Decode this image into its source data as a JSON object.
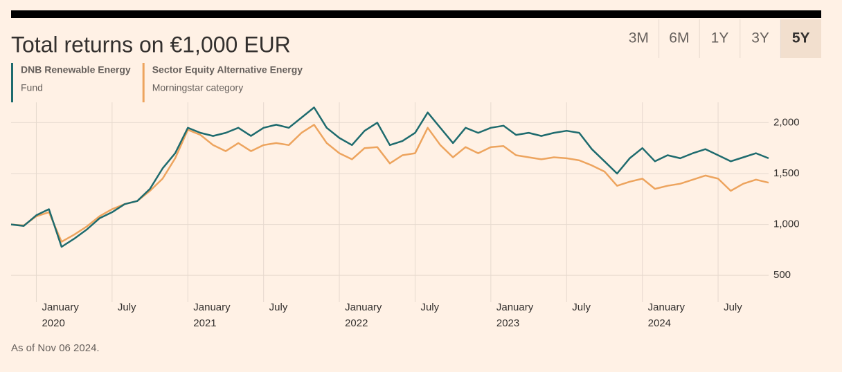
{
  "chart_data": {
    "type": "line",
    "title": "Total returns on €1,000 EUR",
    "ranges": [
      "3M",
      "6M",
      "1Y",
      "3Y",
      "5Y"
    ],
    "active_range": "5Y",
    "footnote": "As of Nov 06 2024.",
    "x": [
      "2019-11",
      "2019-12",
      "2020-01",
      "2020-02",
      "2020-03",
      "2020-04",
      "2020-05",
      "2020-06",
      "2020-07",
      "2020-08",
      "2020-09",
      "2020-10",
      "2020-11",
      "2020-12",
      "2021-01",
      "2021-02",
      "2021-03",
      "2021-04",
      "2021-05",
      "2021-06",
      "2021-07",
      "2021-08",
      "2021-09",
      "2021-10",
      "2021-11",
      "2021-12",
      "2022-01",
      "2022-02",
      "2022-03",
      "2022-04",
      "2022-05",
      "2022-06",
      "2022-07",
      "2022-08",
      "2022-09",
      "2022-10",
      "2022-11",
      "2022-12",
      "2023-01",
      "2023-02",
      "2023-03",
      "2023-04",
      "2023-05",
      "2023-06",
      "2023-07",
      "2023-08",
      "2023-09",
      "2023-10",
      "2023-11",
      "2023-12",
      "2024-01",
      "2024-02",
      "2024-03",
      "2024-04",
      "2024-05",
      "2024-06",
      "2024-07",
      "2024-08",
      "2024-09",
      "2024-10",
      "2024-11"
    ],
    "xlim": [
      "2019-11",
      "2024-11"
    ],
    "xticks": [
      {
        "value": "2020-01",
        "label": "January",
        "sublabel": "2020"
      },
      {
        "value": "2020-07",
        "label": "July"
      },
      {
        "value": "2021-01",
        "label": "January",
        "sublabel": "2021"
      },
      {
        "value": "2021-07",
        "label": "July"
      },
      {
        "value": "2022-01",
        "label": "January",
        "sublabel": "2022"
      },
      {
        "value": "2022-07",
        "label": "July"
      },
      {
        "value": "2023-01",
        "label": "January",
        "sublabel": "2023"
      },
      {
        "value": "2023-07",
        "label": "July"
      },
      {
        "value": "2024-01",
        "label": "January",
        "sublabel": "2024"
      },
      {
        "value": "2024-07",
        "label": "July"
      }
    ],
    "ylim": [
      270,
      2200
    ],
    "yticks": [
      {
        "value": 500,
        "label": "500"
      },
      {
        "value": 1000,
        "label": "1,000"
      },
      {
        "value": 1500,
        "label": "1,500"
      },
      {
        "value": 2000,
        "label": "2,000"
      }
    ],
    "grid": true,
    "series": [
      {
        "name": "DNB Renewable Energy",
        "subtitle": "Fund",
        "color": "#1e6b6e",
        "values": [
          1000,
          985,
          1090,
          1150,
          780,
          860,
          950,
          1060,
          1120,
          1200,
          1230,
          1350,
          1550,
          1700,
          1950,
          1900,
          1870,
          1900,
          1950,
          1870,
          1950,
          1980,
          1950,
          2050,
          2150,
          1950,
          1850,
          1780,
          1920,
          2000,
          1780,
          1820,
          1900,
          2100,
          1950,
          1800,
          1950,
          1900,
          1950,
          1970,
          1880,
          1900,
          1870,
          1900,
          1920,
          1900,
          1740,
          1620,
          1500,
          1650,
          1750,
          1620,
          1680,
          1650,
          1700,
          1740,
          1680,
          1620,
          1660,
          1700,
          1650
        ]
      },
      {
        "name": "Sector Equity Alternative Energy",
        "subtitle": "Morningstar category",
        "color": "#eda45e",
        "values": [
          1000,
          990,
          1080,
          1120,
          830,
          900,
          980,
          1080,
          1150,
          1200,
          1230,
          1330,
          1450,
          1650,
          1930,
          1880,
          1780,
          1720,
          1800,
          1720,
          1780,
          1800,
          1780,
          1900,
          1980,
          1800,
          1700,
          1640,
          1750,
          1760,
          1600,
          1680,
          1700,
          1950,
          1780,
          1660,
          1760,
          1700,
          1760,
          1770,
          1680,
          1660,
          1640,
          1660,
          1650,
          1630,
          1580,
          1520,
          1380,
          1420,
          1450,
          1350,
          1380,
          1400,
          1440,
          1480,
          1450,
          1330,
          1400,
          1440,
          1410
        ]
      }
    ]
  }
}
